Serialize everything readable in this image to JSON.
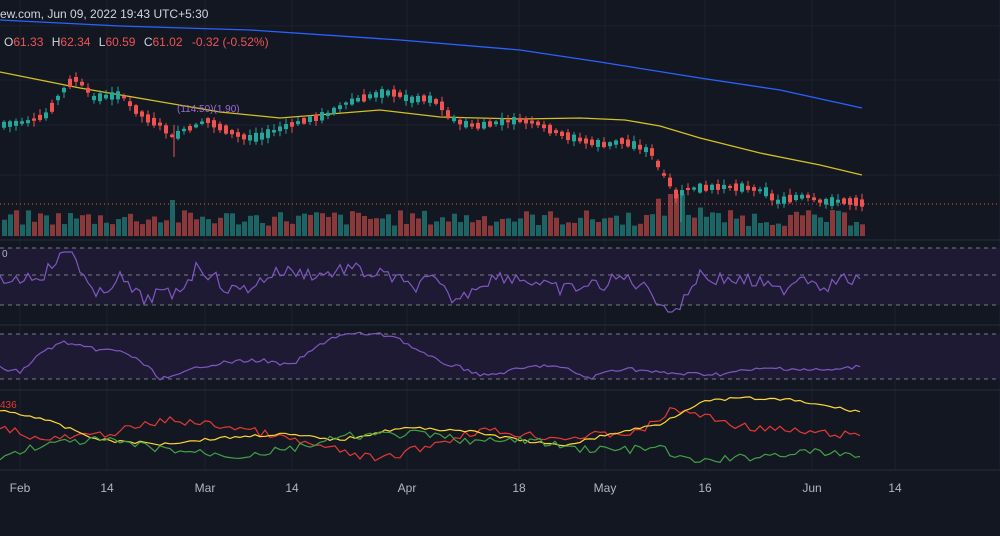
{
  "header": {
    "source_time": "ew.com, Jun 09, 2022 19:43 UTC+5:30",
    "ohlc": {
      "open_label": "O",
      "open": "61.33",
      "high_label": "H",
      "high": "62.34",
      "low_label": "L",
      "low": "60.59",
      "close_label": "C",
      "close": "61.02",
      "change": "-0.32 (-0.52%)"
    }
  },
  "annotations": {
    "price_marker": "(114.50)(1.90)",
    "rsi_pane_tag": "0",
    "bottom_pane_tag": "436"
  },
  "colors": {
    "background": "#131722",
    "up": "#26a69a",
    "down": "#ef5350",
    "ma_slow": "#2962ff",
    "ma_fast": "#d4c11f",
    "oscillator": "#7e57c2",
    "band_fill": "#1f1a33",
    "line_red": "#e53935",
    "line_green": "#43a047",
    "line_yellow": "#fdd835",
    "axis_text": "#b2b5be"
  },
  "x_axis": {
    "labels": [
      "Feb",
      "14",
      "Mar",
      "14",
      "Apr",
      "18",
      "May",
      "16",
      "Jun",
      "14"
    ]
  },
  "chart_data": [
    {
      "type": "candlestick",
      "time_range": [
        "2022-01-26",
        "2022-06-09"
      ],
      "last_candle": {
        "open": 61.33,
        "high": 62.34,
        "low": 60.59,
        "close": 61.02
      },
      "overlays": [
        "slow moving average (blue)",
        "fast moving average (yellow)"
      ],
      "volume": "bars below price, colored by candle direction"
    },
    {
      "type": "line",
      "name": "",
      "description": "oscillator pane with dashed 70/50/30 band lines"
    },
    {
      "type": "line",
      "name": "",
      "description": "second oscillator pane with dashed band lines"
    },
    {
      "type": "line",
      "series": [
        {
          "color": "red"
        },
        {
          "color": "yellow"
        },
        {
          "color": "green"
        }
      ]
    }
  ]
}
